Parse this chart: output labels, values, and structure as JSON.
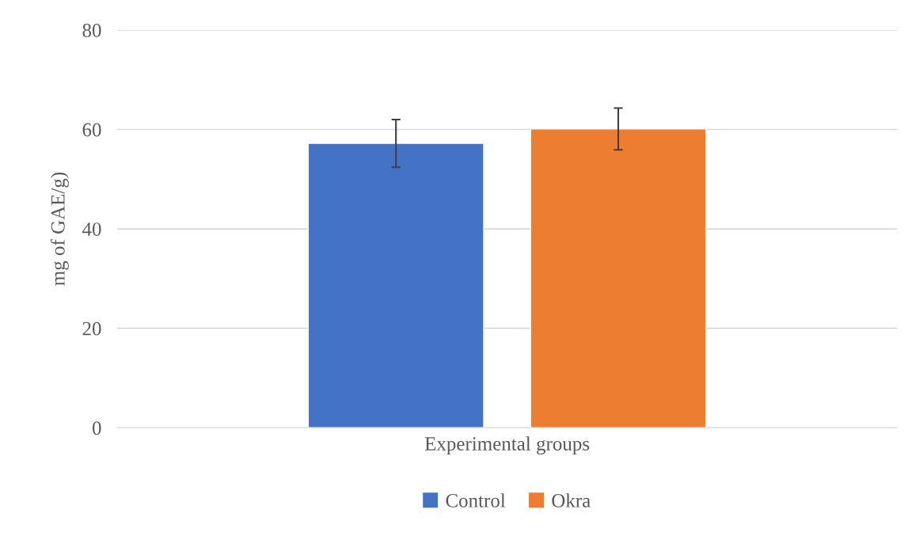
{
  "chart_data": {
    "type": "bar",
    "xlabel": null,
    "ylabel": "mg of GAE/g)",
    "categories": [
      "Experimental groups"
    ],
    "series": [
      {
        "name": "Control",
        "color": "#4472c4",
        "values": [
          57.2
        ],
        "errors": [
          4.8
        ]
      },
      {
        "name": "Okra",
        "color": "#ed7d31",
        "values": [
          60.1
        ],
        "errors": [
          4.2
        ]
      }
    ],
    "ylim": [
      0,
      80
    ],
    "yticks": [
      0,
      20,
      40,
      60,
      80
    ],
    "grid": "y",
    "legend": "bottom"
  }
}
